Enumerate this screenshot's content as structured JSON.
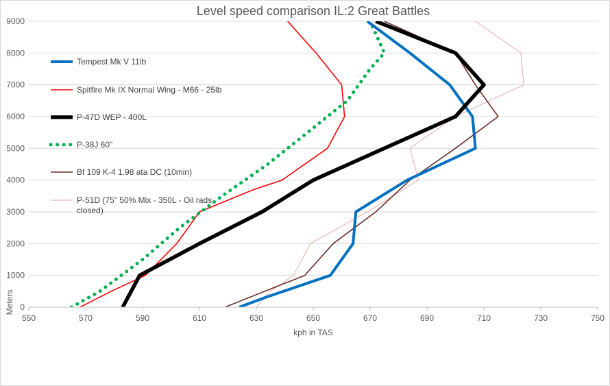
{
  "chart_data": {
    "type": "line",
    "title": "Level speed comparison IL:2 Great Battles",
    "xlabel": "kph in TAS",
    "ylabel": "Meters",
    "xlim": [
      550,
      750
    ],
    "ylim": [
      0,
      9000
    ],
    "x_ticks": [
      "550",
      "570",
      "590",
      "610",
      "630",
      "650",
      "670",
      "690",
      "710",
      "730",
      "750"
    ],
    "y_ticks": [
      "0",
      "1000",
      "2000",
      "3000",
      "4000",
      "5000",
      "6000",
      "7000",
      "8000",
      "9000"
    ],
    "grid": "horizontal",
    "legend_position": "left-inside",
    "series": [
      {
        "name": "Tempest Mk V 11lb",
        "color": "#0070C0",
        "style": "solid-thick",
        "points": [
          [
            624,
            0
          ],
          [
            633,
            300
          ],
          [
            656,
            1000
          ],
          [
            664,
            2000
          ],
          [
            665,
            3000
          ],
          [
            683,
            4000
          ],
          [
            707,
            5000
          ],
          [
            706,
            6000
          ],
          [
            698,
            7000
          ],
          [
            684,
            8000
          ],
          [
            669,
            9000
          ]
        ]
      },
      {
        "name": "Spitfire Mk IX Normal Wing - M66 - 25lb",
        "color": "#FF0000",
        "style": "solid-medium",
        "points": [
          [
            568,
            0
          ],
          [
            579,
            500
          ],
          [
            591,
            1000
          ],
          [
            602,
            2000
          ],
          [
            610,
            3000
          ],
          [
            629,
            3700
          ],
          [
            639,
            4000
          ],
          [
            655,
            5000
          ],
          [
            661,
            6000
          ],
          [
            660,
            7000
          ],
          [
            651,
            8000
          ],
          [
            641,
            9000
          ]
        ]
      },
      {
        "name": "P-47D WEP - 400L",
        "color": "#000000",
        "style": "solid-bold",
        "points": [
          [
            583,
            0
          ],
          [
            589,
            1000
          ],
          [
            610,
            2000
          ],
          [
            632,
            3000
          ],
          [
            650,
            4000
          ],
          [
            675,
            5000
          ],
          [
            700,
            6000
          ],
          [
            710,
            7000
          ],
          [
            700,
            8000
          ],
          [
            672,
            9000
          ]
        ]
      },
      {
        "name": "P-38J 60\"",
        "color": "#00B050",
        "style": "dotted",
        "points": [
          [
            565,
            0
          ],
          [
            575,
            500
          ],
          [
            590,
            1500
          ],
          [
            603,
            2500
          ],
          [
            618,
            3500
          ],
          [
            634,
            4500
          ],
          [
            648,
            5500
          ],
          [
            662,
            6500
          ],
          [
            670,
            7500
          ],
          [
            675,
            8000
          ],
          [
            670,
            9000
          ]
        ]
      },
      {
        "name": "Bf 109 K-4 1.98 ata DC (10min)",
        "color": "#6B2C2C",
        "style": "solid-thin",
        "points": [
          [
            619,
            0
          ],
          [
            633,
            500
          ],
          [
            647,
            1000
          ],
          [
            657,
            2000
          ],
          [
            672,
            3000
          ],
          [
            684,
            4000
          ],
          [
            700,
            5000
          ],
          [
            715,
            6000
          ],
          [
            707,
            7000
          ],
          [
            700,
            8000
          ],
          [
            675,
            9000
          ]
        ]
      },
      {
        "name": "P-51D (75\" 50% Mix - 350L - Oil rads closed)",
        "color": "#E8A0A0",
        "style": "hairline",
        "points": [
          [
            630,
            0
          ],
          [
            635,
            500
          ],
          [
            643,
            1000
          ],
          [
            649,
            2000
          ],
          [
            669,
            3000
          ],
          [
            687,
            4000
          ],
          [
            684,
            5000
          ],
          [
            700,
            6000
          ],
          [
            724,
            7000
          ],
          [
            723,
            8000
          ],
          [
            707,
            9000
          ]
        ]
      }
    ]
  }
}
